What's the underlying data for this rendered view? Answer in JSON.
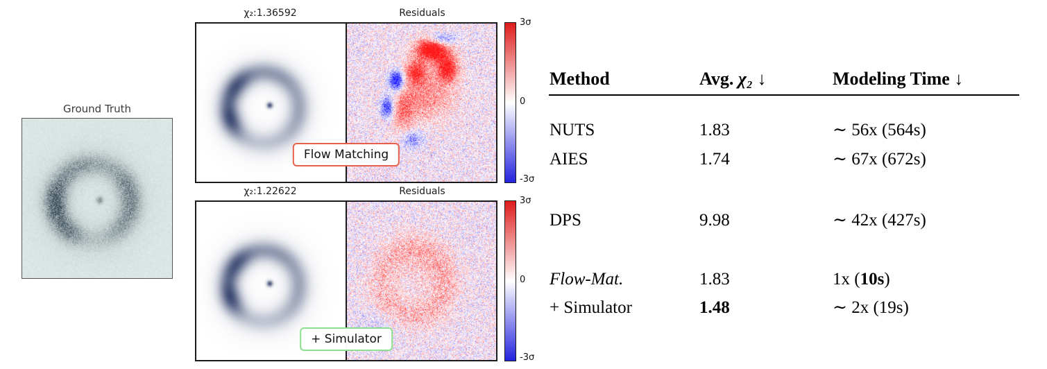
{
  "figure": {
    "ground_truth_label": "Ground Truth",
    "panels": [
      {
        "chi2_label": "χ₂:1.36592",
        "residuals_label": "Residuals",
        "badge_label": "Flow Matching"
      },
      {
        "chi2_label": "χ₂:1.22622",
        "residuals_label": "Residuals",
        "badge_label": "+ Simulator"
      }
    ],
    "colorbar": {
      "top_label": "3σ",
      "mid_label": "0",
      "bottom_label": "-3σ"
    },
    "colors": {
      "flow_matching_badge_border": "#e8604a",
      "simulator_badge_border": "#8de08d",
      "residual_positive": "#de1c1c",
      "residual_negative": "#2323de"
    }
  },
  "table": {
    "headers": {
      "method": "Method",
      "avg_prefix": "Avg. ",
      "avg_chi": "χ₂",
      "avg_suffix": " ↓",
      "time": "Modeling Time ↓"
    },
    "rows": [
      {
        "method": "NUTS",
        "chi2": "1.83",
        "time": "∼ 56x (564s)"
      },
      {
        "method": "AIES",
        "chi2": "1.74",
        "time": "∼ 67x (672s)"
      },
      {
        "method": "DPS",
        "chi2": "9.98",
        "time": "∼ 42x (427s)"
      },
      {
        "method": "Flow-Mat.",
        "chi2": "1.83",
        "time_prefix": "1x (",
        "time_bold": "10s",
        "time_suffix": ")"
      },
      {
        "method": "+ Simulator",
        "chi2_bold": "1.48",
        "time": "∼ 2x (19s)"
      }
    ]
  }
}
